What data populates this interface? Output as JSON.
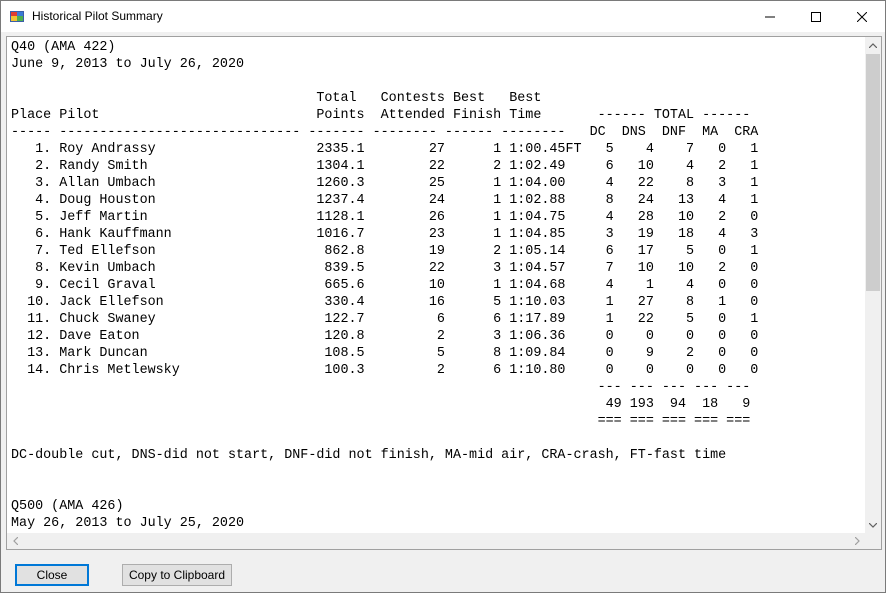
{
  "window": {
    "title": "Historical Pilot Summary",
    "icon": "app-grid-icon"
  },
  "report": {
    "lines": [
      "Q40 (AMA 422)",
      "June 9, 2013 to July 26, 2020",
      "",
      "                                      Total   Contests Best   Best",
      "Place Pilot                           Points  Attended Finish Time       ------ TOTAL ------",
      "----- ------------------------------ ------- -------- ------ --------   DC  DNS  DNF  MA  CRA",
      "   1. Roy Andrassy                    2335.1        27      1 1:00.45FT   5    4    7   0   1",
      "   2. Randy Smith                     1304.1        22      2 1:02.49     6   10    4   2   1",
      "   3. Allan Umbach                    1260.3        25      1 1:04.00     4   22    8   3   1",
      "   4. Doug Houston                    1237.4        24      1 1:02.88     8   24   13   4   1",
      "   5. Jeff Martin                     1128.1        26      1 1:04.75     4   28   10   2   0",
      "   6. Hank Kauffmann                  1016.7        23      1 1:04.85     3   19   18   4   3",
      "   7. Ted Ellefson                     862.8        19      2 1:05.14     6   17    5   0   1",
      "   8. Kevin Umbach                     839.5        22      3 1:04.57     7   10   10   2   0",
      "   9. Cecil Graval                     665.6        10      1 1:04.68     4    1    4   0   0",
      "  10. Jack Ellefson                    330.4        16      5 1:10.03     1   27    8   1   0",
      "  11. Chuck Swaney                     122.7         6      6 1:17.89     1   22    5   0   1",
      "  12. Dave Eaton                       120.8         2      3 1:06.36     0    0    0   0   0",
      "  13. Mark Duncan                      108.5         5      8 1:09.84     0    9    2   0   0",
      "  14. Chris Metlewsky                  100.3         2      6 1:10.80     0    0    0   0   0",
      "                                                                         --- --- --- --- ---",
      "                                                                          49 193  94  18   9",
      "                                                                         === === === === ===",
      "",
      "DC-double cut, DNS-did not start, DNF-did not finish, MA-mid air, CRA-crash, FT-fast time",
      "",
      "",
      "Q500 (AMA 426)",
      "May 26, 2013 to July 25, 2020"
    ]
  },
  "buttons": {
    "close_label": "Close",
    "copy_label": "Copy to Clipboard"
  }
}
